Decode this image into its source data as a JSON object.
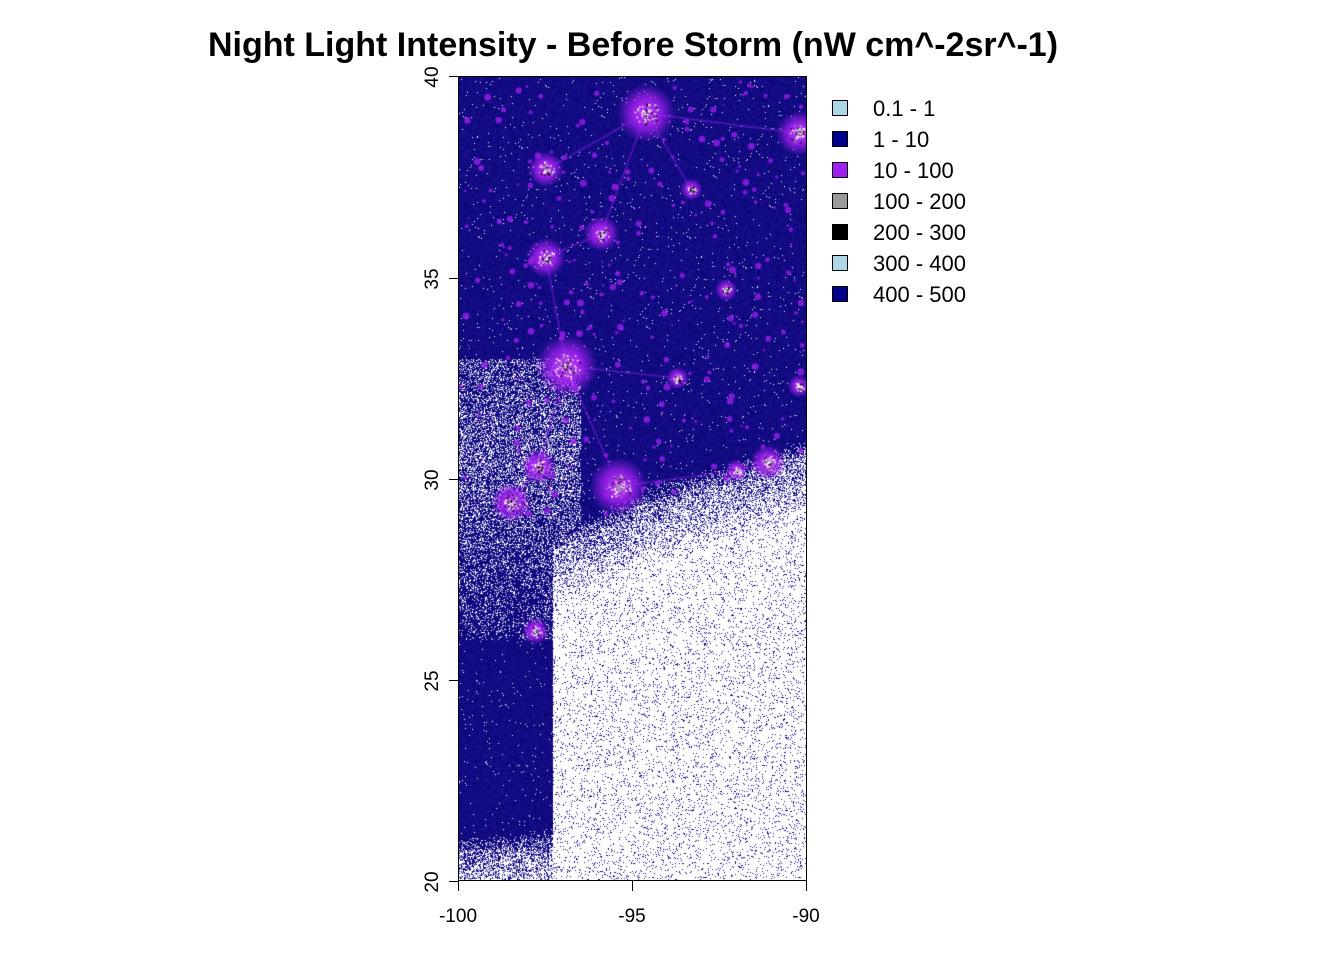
{
  "title": "Night Light Intensity - Before Storm (nW cm^-2sr^-1)",
  "map": {
    "type": "raster-map",
    "lon_range": [
      -100,
      -90
    ],
    "lat_range": [
      20,
      40
    ],
    "x_ticks": [
      "-100",
      "-95",
      "-90"
    ],
    "y_ticks": [
      "20",
      "25",
      "30",
      "35",
      "40"
    ],
    "cities": [
      {
        "lon": -94.6,
        "lat": 39.1,
        "size": 1.3
      },
      {
        "lon": -90.2,
        "lat": 38.6,
        "size": 1.0
      },
      {
        "lon": -97.5,
        "lat": 37.7,
        "size": 0.8
      },
      {
        "lon": -95.9,
        "lat": 36.1,
        "size": 0.8
      },
      {
        "lon": -97.5,
        "lat": 35.5,
        "size": 0.9
      },
      {
        "lon": -96.9,
        "lat": 32.8,
        "size": 1.4
      },
      {
        "lon": -93.3,
        "lat": 37.2,
        "size": 0.5
      },
      {
        "lon": -97.7,
        "lat": 30.3,
        "size": 0.8
      },
      {
        "lon": -98.5,
        "lat": 29.4,
        "size": 0.9
      },
      {
        "lon": -95.4,
        "lat": 29.8,
        "size": 1.3
      },
      {
        "lon": -91.1,
        "lat": 30.4,
        "size": 0.8
      },
      {
        "lon": -92.0,
        "lat": 30.2,
        "size": 0.5
      },
      {
        "lon": -97.8,
        "lat": 26.2,
        "size": 0.6
      },
      {
        "lon": -90.2,
        "lat": 32.3,
        "size": 0.5
      },
      {
        "lon": -92.3,
        "lat": 34.7,
        "size": 0.5
      },
      {
        "lon": -93.7,
        "lat": 32.5,
        "size": 0.5
      }
    ]
  },
  "legend": {
    "items": [
      {
        "label": "0.1 - 1",
        "color": "#add8e6"
      },
      {
        "label": "1 - 10",
        "color": "#00008b"
      },
      {
        "label": "10 - 100",
        "color": "#a020f0"
      },
      {
        "label": "100 - 200",
        "color": "#999999"
      },
      {
        "label": "200 - 300",
        "color": "#000000"
      },
      {
        "label": "300 - 400",
        "color": "#add8e6"
      },
      {
        "label": "400 - 500",
        "color": "#00008b"
      }
    ]
  },
  "colors": {
    "background_dark": "#1a0f8c",
    "water_light": "#ffffff",
    "glow": "#a020f0"
  }
}
